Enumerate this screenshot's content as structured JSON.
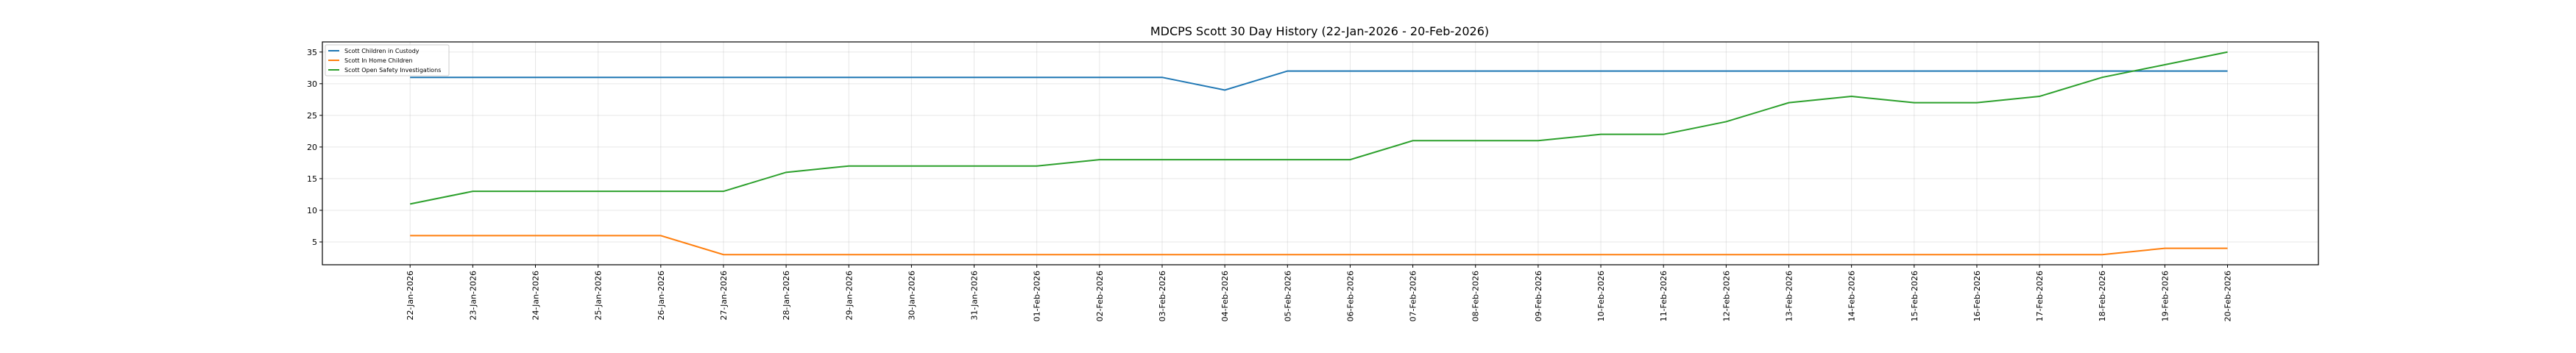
{
  "chart_data": {
    "type": "line",
    "title": "MDCPS Scott 30 Day History (22-Jan-2026 - 20-Feb-2026)",
    "xlabel": "",
    "ylabel": "",
    "ylim": [
      1.4,
      36.6
    ],
    "yticks": [
      5,
      10,
      15,
      20,
      25,
      30,
      35
    ],
    "grid": true,
    "legend_position": "top-left",
    "categories": [
      "22-Jan-2026",
      "23-Jan-2026",
      "24-Jan-2026",
      "25-Jan-2026",
      "26-Jan-2026",
      "27-Jan-2026",
      "28-Jan-2026",
      "29-Jan-2026",
      "30-Jan-2026",
      "31-Jan-2026",
      "01-Feb-2026",
      "02-Feb-2026",
      "03-Feb-2026",
      "04-Feb-2026",
      "05-Feb-2026",
      "06-Feb-2026",
      "07-Feb-2026",
      "08-Feb-2026",
      "09-Feb-2026",
      "10-Feb-2026",
      "11-Feb-2026",
      "12-Feb-2026",
      "13-Feb-2026",
      "14-Feb-2026",
      "15-Feb-2026",
      "16-Feb-2026",
      "17-Feb-2026",
      "18-Feb-2026",
      "19-Feb-2026",
      "20-Feb-2026"
    ],
    "series": [
      {
        "name": "Scott Children in Custody",
        "color": "#1f77b4",
        "values": [
          31,
          31,
          31,
          31,
          31,
          31,
          31,
          31,
          31,
          31,
          31,
          31,
          31,
          29,
          32,
          32,
          32,
          32,
          32,
          32,
          32,
          32,
          32,
          32,
          32,
          32,
          32,
          32,
          32,
          32
        ]
      },
      {
        "name": "Scott In Home Children",
        "color": "#ff7f0e",
        "values": [
          6,
          6,
          6,
          6,
          6,
          3,
          3,
          3,
          3,
          3,
          3,
          3,
          3,
          3,
          3,
          3,
          3,
          3,
          3,
          3,
          3,
          3,
          3,
          3,
          3,
          3,
          3,
          3,
          4,
          4
        ]
      },
      {
        "name": "Scott Open Safety Investigations",
        "color": "#2ca02c",
        "values": [
          11,
          13,
          13,
          13,
          13,
          13,
          16,
          17,
          17,
          17,
          17,
          18,
          18,
          18,
          18,
          18,
          21,
          21,
          21,
          22,
          22,
          24,
          27,
          28,
          27,
          27,
          28,
          31,
          33,
          35
        ]
      }
    ]
  }
}
